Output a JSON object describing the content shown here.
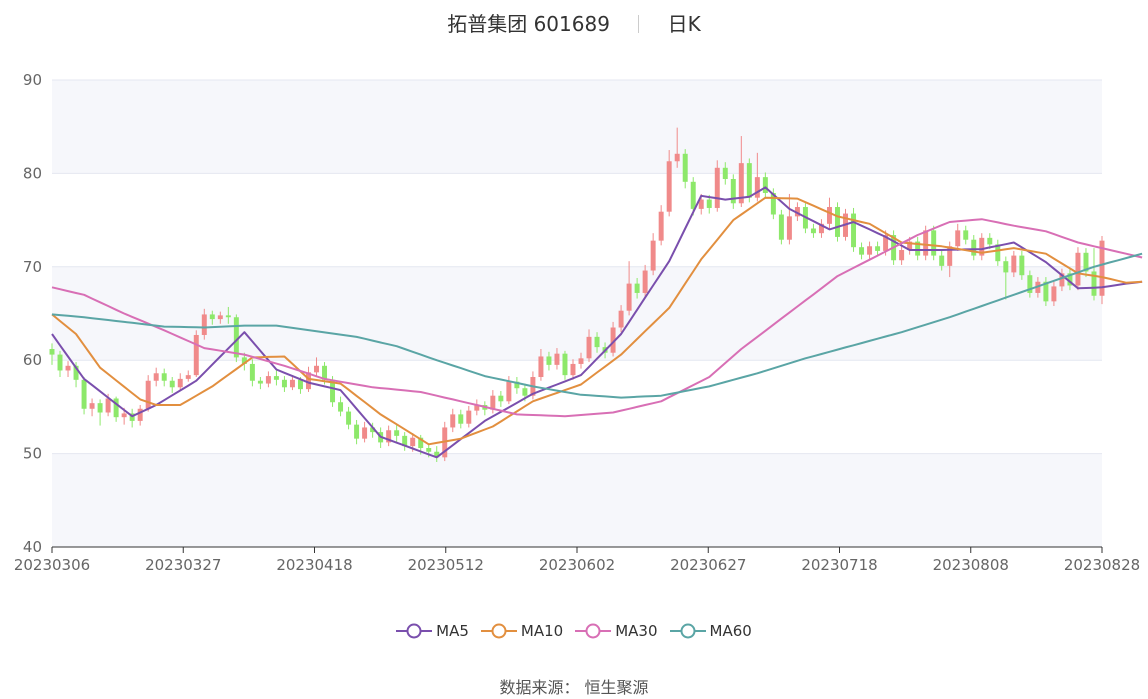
{
  "header": {
    "stock_name": "拓普集团 601689",
    "period": "日K"
  },
  "source": {
    "label": "数据来源：",
    "value": "恒生聚源"
  },
  "chart_data": {
    "type": "candlestick",
    "y_axis": {
      "min": 40,
      "max": 90,
      "ticks": [
        40,
        50,
        60,
        70,
        80,
        90
      ]
    },
    "x_tick_labels": [
      "20230306",
      "20230327",
      "20230418",
      "20230512",
      "20230602",
      "20230627",
      "20230718",
      "20230808",
      "20230828"
    ],
    "colors": {
      "up": "#f08a8a",
      "down": "#8de86a",
      "MA5": "#7a4fad",
      "MA10": "#e28f3f",
      "MA30": "#d86fb5",
      "MA60": "#5aa5a5"
    },
    "candles": [
      [
        61.2,
        60.6,
        61.8,
        59.5
      ],
      [
        60.6,
        58.9,
        61.0,
        58.2
      ],
      [
        58.9,
        59.4,
        59.9,
        58.2
      ],
      [
        59.4,
        57.9,
        59.8,
        57.1
      ],
      [
        57.9,
        54.8,
        58.2,
        54.2
      ],
      [
        54.8,
        55.4,
        55.9,
        54.0
      ],
      [
        55.4,
        54.4,
        55.8,
        53.0
      ],
      [
        54.4,
        55.9,
        56.4,
        54.0
      ],
      [
        55.9,
        53.9,
        56.1,
        53.4
      ],
      [
        53.9,
        54.3,
        54.9,
        53.1
      ],
      [
        54.3,
        53.5,
        54.8,
        52.8
      ],
      [
        53.5,
        54.8,
        55.2,
        53.0
      ],
      [
        54.8,
        57.8,
        58.4,
        54.5
      ],
      [
        57.8,
        58.6,
        59.2,
        57.2
      ],
      [
        58.6,
        57.8,
        59.1,
        57.2
      ],
      [
        57.8,
        57.1,
        58.2,
        56.5
      ],
      [
        57.1,
        58.0,
        58.6,
        56.8
      ],
      [
        58.0,
        58.4,
        58.9,
        57.7
      ],
      [
        58.4,
        62.7,
        63.2,
        58.2
      ],
      [
        62.7,
        64.9,
        65.5,
        62.2
      ],
      [
        64.9,
        64.4,
        65.3,
        63.8
      ],
      [
        64.4,
        64.8,
        65.2,
        63.9
      ],
      [
        64.8,
        64.6,
        65.7,
        63.9
      ],
      [
        64.6,
        60.3,
        64.9,
        59.8
      ],
      [
        60.3,
        59.6,
        60.8,
        58.9
      ],
      [
        59.6,
        57.8,
        60.1,
        57.2
      ],
      [
        57.8,
        57.5,
        58.2,
        56.9
      ],
      [
        57.5,
        58.3,
        58.8,
        57.1
      ],
      [
        58.3,
        57.9,
        58.9,
        57.3
      ],
      [
        57.9,
        57.1,
        58.3,
        56.6
      ],
      [
        57.1,
        57.9,
        58.4,
        56.8
      ],
      [
        57.9,
        56.9,
        58.2,
        56.4
      ],
      [
        56.9,
        58.7,
        59.3,
        56.6
      ],
      [
        58.7,
        59.4,
        60.3,
        58.3
      ],
      [
        59.4,
        57.9,
        59.8,
        57.4
      ],
      [
        57.9,
        55.5,
        58.3,
        55.0
      ],
      [
        55.5,
        54.5,
        56.1,
        54.0
      ],
      [
        54.5,
        53.1,
        55.0,
        52.6
      ],
      [
        53.1,
        51.6,
        53.6,
        51.0
      ],
      [
        51.6,
        52.8,
        53.4,
        51.2
      ],
      [
        52.8,
        52.3,
        53.3,
        51.7
      ],
      [
        52.3,
        51.2,
        52.8,
        50.6
      ],
      [
        51.2,
        52.5,
        53.0,
        50.8
      ],
      [
        52.5,
        51.9,
        53.1,
        51.2
      ],
      [
        51.9,
        50.8,
        52.3,
        50.3
      ],
      [
        50.8,
        51.7,
        52.2,
        50.2
      ],
      [
        51.7,
        50.6,
        52.0,
        49.9
      ],
      [
        50.6,
        50.2,
        51.1,
        49.6
      ],
      [
        50.2,
        49.6,
        50.8,
        49.1
      ],
      [
        49.6,
        52.8,
        53.4,
        49.2
      ],
      [
        52.8,
        54.2,
        54.8,
        52.3
      ],
      [
        54.2,
        53.2,
        54.7,
        52.7
      ],
      [
        53.2,
        54.6,
        55.1,
        52.8
      ],
      [
        54.6,
        55.2,
        55.8,
        54.1
      ],
      [
        55.2,
        54.7,
        55.6,
        54.1
      ],
      [
        54.7,
        56.2,
        56.8,
        54.3
      ],
      [
        56.2,
        55.6,
        56.7,
        55.0
      ],
      [
        55.6,
        57.7,
        58.3,
        55.3
      ],
      [
        57.7,
        57.0,
        58.2,
        56.4
      ],
      [
        57.0,
        56.2,
        57.5,
        55.6
      ],
      [
        56.2,
        58.2,
        58.8,
        55.8
      ],
      [
        58.2,
        60.4,
        61.2,
        57.8
      ],
      [
        60.4,
        59.5,
        60.9,
        58.9
      ],
      [
        59.5,
        60.7,
        61.3,
        59.0
      ],
      [
        60.7,
        58.4,
        61.0,
        57.9
      ],
      [
        58.4,
        59.6,
        60.1,
        57.9
      ],
      [
        59.6,
        60.2,
        60.8,
        59.1
      ],
      [
        60.2,
        62.5,
        63.3,
        59.8
      ],
      [
        62.5,
        61.4,
        63.0,
        60.8
      ],
      [
        61.4,
        60.8,
        61.9,
        60.2
      ],
      [
        60.8,
        63.5,
        64.1,
        60.4
      ],
      [
        63.5,
        65.3,
        65.9,
        63.0
      ],
      [
        65.3,
        68.2,
        70.6,
        64.8
      ],
      [
        68.2,
        67.2,
        68.8,
        66.6
      ],
      [
        67.2,
        69.6,
        70.2,
        66.8
      ],
      [
        69.6,
        72.8,
        73.6,
        69.1
      ],
      [
        72.8,
        75.9,
        76.6,
        72.3
      ],
      [
        75.9,
        81.3,
        82.5,
        75.4
      ],
      [
        81.3,
        82.1,
        84.9,
        80.6
      ],
      [
        82.1,
        79.1,
        82.6,
        78.4
      ],
      [
        79.1,
        76.2,
        79.6,
        75.5
      ],
      [
        76.2,
        77.2,
        77.8,
        75.6
      ],
      [
        77.2,
        76.3,
        77.7,
        75.7
      ],
      [
        76.3,
        80.6,
        81.4,
        75.9
      ],
      [
        80.6,
        79.4,
        81.2,
        78.8
      ],
      [
        79.4,
        76.8,
        79.9,
        76.2
      ],
      [
        76.8,
        81.1,
        84.0,
        76.4
      ],
      [
        81.1,
        77.4,
        81.6,
        76.9
      ],
      [
        77.4,
        79.6,
        82.2,
        77.0
      ],
      [
        79.6,
        77.9,
        80.1,
        77.3
      ],
      [
        77.9,
        75.6,
        78.4,
        75.1
      ],
      [
        75.6,
        72.9,
        76.1,
        72.4
      ],
      [
        72.9,
        75.4,
        77.8,
        72.4
      ],
      [
        75.4,
        76.4,
        76.9,
        74.9
      ],
      [
        76.4,
        74.1,
        76.8,
        73.6
      ],
      [
        74.1,
        73.6,
        74.6,
        73.1
      ],
      [
        73.6,
        74.6,
        75.1,
        73.1
      ],
      [
        74.6,
        76.4,
        77.4,
        74.1
      ],
      [
        76.4,
        73.2,
        76.9,
        72.7
      ],
      [
        73.2,
        75.7,
        76.2,
        72.8
      ],
      [
        75.7,
        72.1,
        76.3,
        71.6
      ],
      [
        72.1,
        71.3,
        72.6,
        70.8
      ],
      [
        71.3,
        72.2,
        72.7,
        70.8
      ],
      [
        72.2,
        71.7,
        72.7,
        71.2
      ],
      [
        71.7,
        73.4,
        73.9,
        71.2
      ],
      [
        73.4,
        70.7,
        73.9,
        70.2
      ],
      [
        70.7,
        71.8,
        72.3,
        70.2
      ],
      [
        71.8,
        72.7,
        73.2,
        71.3
      ],
      [
        72.7,
        71.2,
        73.2,
        70.7
      ],
      [
        71.2,
        73.9,
        74.4,
        70.7
      ],
      [
        73.9,
        71.2,
        74.4,
        70.7
      ],
      [
        71.2,
        70.1,
        71.7,
        69.6
      ],
      [
        70.1,
        72.2,
        72.7,
        68.9
      ],
      [
        72.2,
        73.9,
        74.6,
        71.7
      ],
      [
        73.9,
        72.9,
        74.4,
        72.4
      ],
      [
        72.9,
        71.2,
        73.4,
        70.7
      ],
      [
        71.2,
        73.1,
        73.6,
        70.7
      ],
      [
        73.1,
        72.4,
        73.6,
        71.9
      ],
      [
        72.4,
        70.6,
        72.9,
        70.1
      ],
      [
        70.6,
        69.4,
        71.1,
        66.5
      ],
      [
        69.4,
        71.2,
        71.7,
        68.9
      ],
      [
        71.2,
        69.1,
        71.7,
        68.6
      ],
      [
        69.1,
        67.2,
        69.6,
        66.7
      ],
      [
        67.2,
        68.4,
        68.9,
        66.7
      ],
      [
        68.4,
        66.3,
        68.9,
        65.8
      ],
      [
        66.3,
        67.9,
        68.4,
        65.8
      ],
      [
        67.9,
        69.3,
        69.8,
        67.4
      ],
      [
        69.3,
        68.0,
        69.8,
        67.5
      ],
      [
        68.0,
        71.5,
        72.1,
        67.5
      ],
      [
        71.5,
        69.5,
        72.0,
        68.9
      ],
      [
        69.5,
        66.9,
        72.0,
        66.4
      ],
      [
        66.9,
        72.8,
        73.3,
        66.0
      ]
    ],
    "ma": {
      "MA5": {
        "from": 0,
        "knots": [
          [
            0,
            62.8
          ],
          [
            4,
            58.0
          ],
          [
            10,
            54.0
          ],
          [
            13,
            55.2
          ],
          [
            18,
            57.8
          ],
          [
            24,
            63.0
          ],
          [
            28,
            59.0
          ],
          [
            32,
            57.6
          ],
          [
            36,
            56.8
          ],
          [
            41,
            51.8
          ],
          [
            48,
            49.6
          ],
          [
            54,
            53.5
          ],
          [
            60,
            56.4
          ],
          [
            66,
            58.4
          ],
          [
            71,
            62.8
          ],
          [
            77,
            70.6
          ],
          [
            81,
            77.6
          ],
          [
            84,
            77.2
          ],
          [
            87,
            77.5
          ],
          [
            89,
            78.5
          ],
          [
            92,
            76.2
          ],
          [
            97,
            74.0
          ],
          [
            100,
            74.8
          ],
          [
            104,
            73.2
          ],
          [
            107,
            71.8
          ],
          [
            111,
            71.8
          ],
          [
            116,
            71.9
          ],
          [
            120,
            72.6
          ],
          [
            124,
            70.5
          ],
          [
            128,
            67.7
          ],
          [
            131,
            67.8
          ],
          [
            134,
            68.2
          ],
          [
            136,
            68.4
          ]
        ]
      },
      "MA10": {
        "from": 0,
        "knots": [
          [
            0,
            64.9
          ],
          [
            3,
            62.8
          ],
          [
            6,
            59.2
          ],
          [
            11,
            55.8
          ],
          [
            13,
            55.2
          ],
          [
            16,
            55.2
          ],
          [
            20,
            57.2
          ],
          [
            25,
            60.3
          ],
          [
            29,
            60.4
          ],
          [
            32,
            58.0
          ],
          [
            36,
            57.5
          ],
          [
            41,
            54.2
          ],
          [
            47,
            51.0
          ],
          [
            51,
            51.6
          ],
          [
            55,
            52.9
          ],
          [
            60,
            55.6
          ],
          [
            66,
            57.4
          ],
          [
            71,
            60.6
          ],
          [
            77,
            65.6
          ],
          [
            81,
            70.8
          ],
          [
            85,
            75.0
          ],
          [
            89,
            77.4
          ],
          [
            93,
            77.3
          ],
          [
            98,
            75.4
          ],
          [
            102,
            74.6
          ],
          [
            106,
            72.6
          ],
          [
            111,
            72.2
          ],
          [
            116,
            71.5
          ],
          [
            120,
            72.0
          ],
          [
            124,
            71.4
          ],
          [
            128,
            69.3
          ],
          [
            131,
            68.9
          ],
          [
            134,
            68.3
          ],
          [
            136,
            68.4
          ]
        ]
      },
      "MA30": {
        "from": 0,
        "knots": [
          [
            0,
            67.8
          ],
          [
            4,
            67.0
          ],
          [
            9,
            65.0
          ],
          [
            14,
            63.2
          ],
          [
            19,
            61.3
          ],
          [
            24,
            60.6
          ],
          [
            29,
            59.4
          ],
          [
            34,
            58.0
          ],
          [
            40,
            57.1
          ],
          [
            46,
            56.6
          ],
          [
            52,
            55.4
          ],
          [
            58,
            54.2
          ],
          [
            64,
            54.0
          ],
          [
            70,
            54.4
          ],
          [
            76,
            55.6
          ],
          [
            82,
            58.2
          ],
          [
            86,
            61.2
          ],
          [
            90,
            63.8
          ],
          [
            94,
            66.4
          ],
          [
            98,
            69.0
          ],
          [
            103,
            71.2
          ],
          [
            108,
            73.4
          ],
          [
            112,
            74.8
          ],
          [
            116,
            75.1
          ],
          [
            120,
            74.4
          ],
          [
            124,
            73.8
          ],
          [
            128,
            72.6
          ],
          [
            132,
            71.8
          ],
          [
            136,
            71.0
          ]
        ]
      },
      "MA60": {
        "from": 0,
        "knots": [
          [
            0,
            64.9
          ],
          [
            4,
            64.6
          ],
          [
            9,
            64.1
          ],
          [
            14,
            63.6
          ],
          [
            19,
            63.5
          ],
          [
            24,
            63.7
          ],
          [
            28,
            63.7
          ],
          [
            33,
            63.1
          ],
          [
            38,
            62.5
          ],
          [
            43,
            61.5
          ],
          [
            48,
            60.0
          ],
          [
            54,
            58.3
          ],
          [
            60,
            57.2
          ],
          [
            66,
            56.3
          ],
          [
            71,
            56.0
          ],
          [
            76,
            56.2
          ],
          [
            82,
            57.2
          ],
          [
            88,
            58.6
          ],
          [
            94,
            60.2
          ],
          [
            100,
            61.6
          ],
          [
            106,
            63.0
          ],
          [
            112,
            64.6
          ],
          [
            118,
            66.4
          ],
          [
            124,
            68.2
          ],
          [
            130,
            70.0
          ],
          [
            136,
            71.4
          ]
        ]
      }
    },
    "legend": [
      "MA5",
      "MA10",
      "MA30",
      "MA60"
    ]
  }
}
